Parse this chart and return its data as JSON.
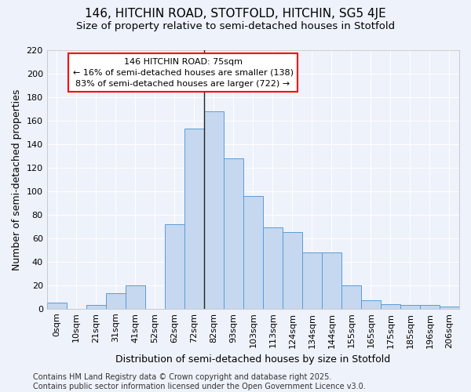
{
  "title": "146, HITCHIN ROAD, STOTFOLD, HITCHIN, SG5 4JE",
  "subtitle": "Size of property relative to semi-detached houses in Stotfold",
  "xlabel": "Distribution of semi-detached houses by size in Stotfold",
  "ylabel": "Number of semi-detached properties",
  "bar_color": "#c5d8f0",
  "bar_edge_color": "#5b9bd5",
  "background_color": "#eef2fb",
  "grid_color": "#ffffff",
  "categories": [
    "0sqm",
    "10sqm",
    "21sqm",
    "31sqm",
    "41sqm",
    "52sqm",
    "62sqm",
    "72sqm",
    "82sqm",
    "93sqm",
    "103sqm",
    "113sqm",
    "124sqm",
    "134sqm",
    "144sqm",
    "155sqm",
    "165sqm",
    "175sqm",
    "185sqm",
    "196sqm",
    "206sqm"
  ],
  "values": [
    5,
    0,
    3,
    13,
    20,
    0,
    72,
    153,
    168,
    128,
    96,
    69,
    65,
    48,
    48,
    20,
    7,
    4,
    3,
    3,
    2
  ],
  "ylim": [
    0,
    220
  ],
  "yticks": [
    0,
    20,
    40,
    60,
    80,
    100,
    120,
    140,
    160,
    180,
    200,
    220
  ],
  "property_line_x": 7.5,
  "annotation_title": "146 HITCHIN ROAD: 75sqm",
  "annotation_line1": "← 16% of semi-detached houses are smaller (138)",
  "annotation_line2": "83% of semi-detached houses are larger (722) →",
  "footer_line1": "Contains HM Land Registry data © Crown copyright and database right 2025.",
  "footer_line2": "Contains public sector information licensed under the Open Government Licence v3.0.",
  "title_fontsize": 11,
  "subtitle_fontsize": 9.5,
  "axis_label_fontsize": 9,
  "tick_fontsize": 8,
  "annotation_fontsize": 8,
  "footer_fontsize": 7
}
